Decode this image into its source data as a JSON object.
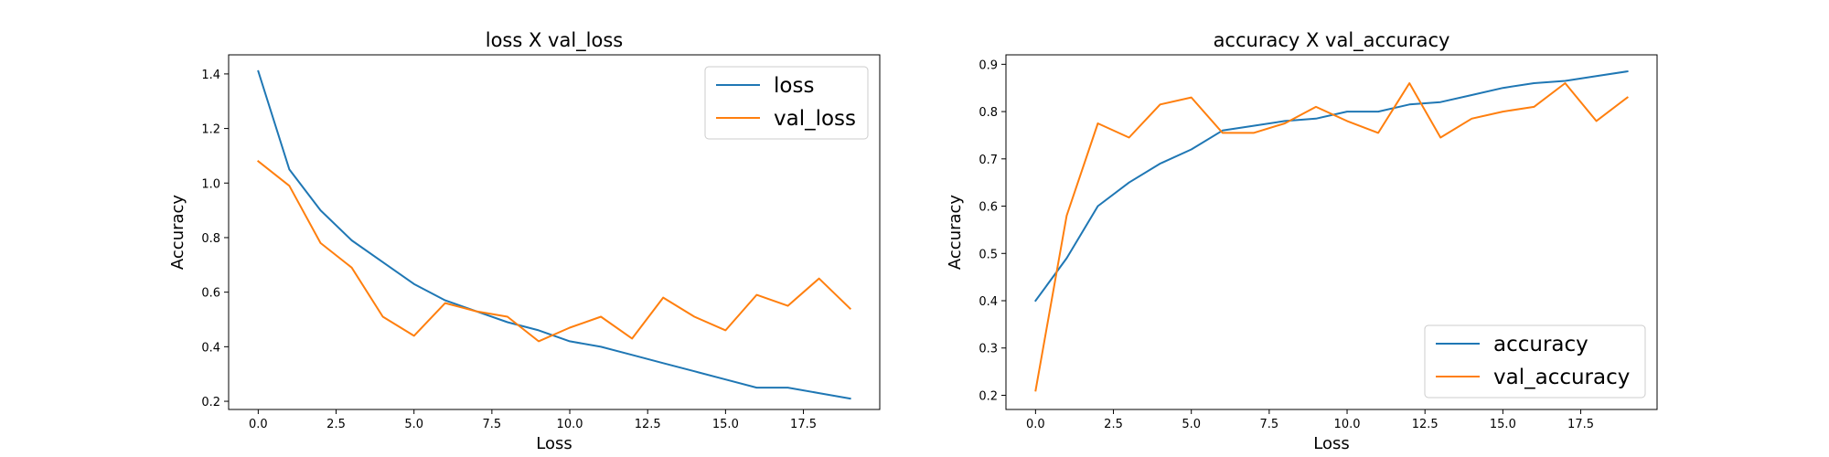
{
  "chart_data": [
    {
      "type": "line",
      "title": "loss X val_loss",
      "xlabel": "Loss",
      "ylabel": "Accuracy",
      "xlim": [
        -0.95,
        19.95
      ],
      "ylim": [
        0.17,
        1.47
      ],
      "xticks": [
        0.0,
        2.5,
        5.0,
        7.5,
        10.0,
        12.5,
        15.0,
        17.5
      ],
      "xtick_labels": [
        "0.0",
        "2.5",
        "5.0",
        "7.5",
        "10.0",
        "12.5",
        "15.0",
        "17.5"
      ],
      "yticks": [
        0.2,
        0.4,
        0.6,
        0.8,
        1.0,
        1.2,
        1.4
      ],
      "ytick_labels": [
        "0.2",
        "0.4",
        "0.6",
        "0.8",
        "1.0",
        "1.2",
        "1.4"
      ],
      "grid": false,
      "legend_position": "top-right",
      "x": [
        0,
        1,
        2,
        3,
        4,
        5,
        6,
        7,
        8,
        9,
        10,
        11,
        12,
        13,
        14,
        15,
        16,
        17,
        18,
        19
      ],
      "series": [
        {
          "name": "loss",
          "color": "#1f77b4",
          "values": [
            1.41,
            1.05,
            0.9,
            0.79,
            0.71,
            0.63,
            0.57,
            0.53,
            0.49,
            0.46,
            0.42,
            0.4,
            0.37,
            0.34,
            0.31,
            0.28,
            0.25,
            0.25,
            0.23,
            0.21
          ]
        },
        {
          "name": "val_loss",
          "color": "#ff7f0e",
          "values": [
            1.08,
            0.99,
            0.78,
            0.69,
            0.51,
            0.44,
            0.56,
            0.53,
            0.51,
            0.42,
            0.47,
            0.51,
            0.43,
            0.58,
            0.51,
            0.46,
            0.59,
            0.55,
            0.65,
            0.54
          ]
        }
      ]
    },
    {
      "type": "line",
      "title": "accuracy X val_accuracy",
      "xlabel": "Loss",
      "ylabel": "Accuracy",
      "xlim": [
        -0.95,
        19.95
      ],
      "ylim": [
        0.17,
        0.92
      ],
      "xticks": [
        0.0,
        2.5,
        5.0,
        7.5,
        10.0,
        12.5,
        15.0,
        17.5
      ],
      "xtick_labels": [
        "0.0",
        "2.5",
        "5.0",
        "7.5",
        "10.0",
        "12.5",
        "15.0",
        "17.5"
      ],
      "yticks": [
        0.2,
        0.3,
        0.4,
        0.5,
        0.6,
        0.7,
        0.8,
        0.9
      ],
      "ytick_labels": [
        "0.2",
        "0.3",
        "0.4",
        "0.5",
        "0.6",
        "0.7",
        "0.8",
        "0.9"
      ],
      "grid": false,
      "legend_position": "bottom-right",
      "x": [
        0,
        1,
        2,
        3,
        4,
        5,
        6,
        7,
        8,
        9,
        10,
        11,
        12,
        13,
        14,
        15,
        16,
        17,
        18,
        19
      ],
      "series": [
        {
          "name": "accuracy",
          "color": "#1f77b4",
          "values": [
            0.4,
            0.49,
            0.6,
            0.65,
            0.69,
            0.72,
            0.76,
            0.77,
            0.78,
            0.785,
            0.8,
            0.8,
            0.815,
            0.82,
            0.835,
            0.85,
            0.86,
            0.865,
            0.875,
            0.885
          ]
        },
        {
          "name": "val_accuracy",
          "color": "#ff7f0e",
          "values": [
            0.21,
            0.58,
            0.775,
            0.745,
            0.815,
            0.83,
            0.755,
            0.755,
            0.775,
            0.81,
            0.78,
            0.755,
            0.86,
            0.745,
            0.785,
            0.8,
            0.81,
            0.86,
            0.78,
            0.83
          ]
        }
      ]
    }
  ]
}
